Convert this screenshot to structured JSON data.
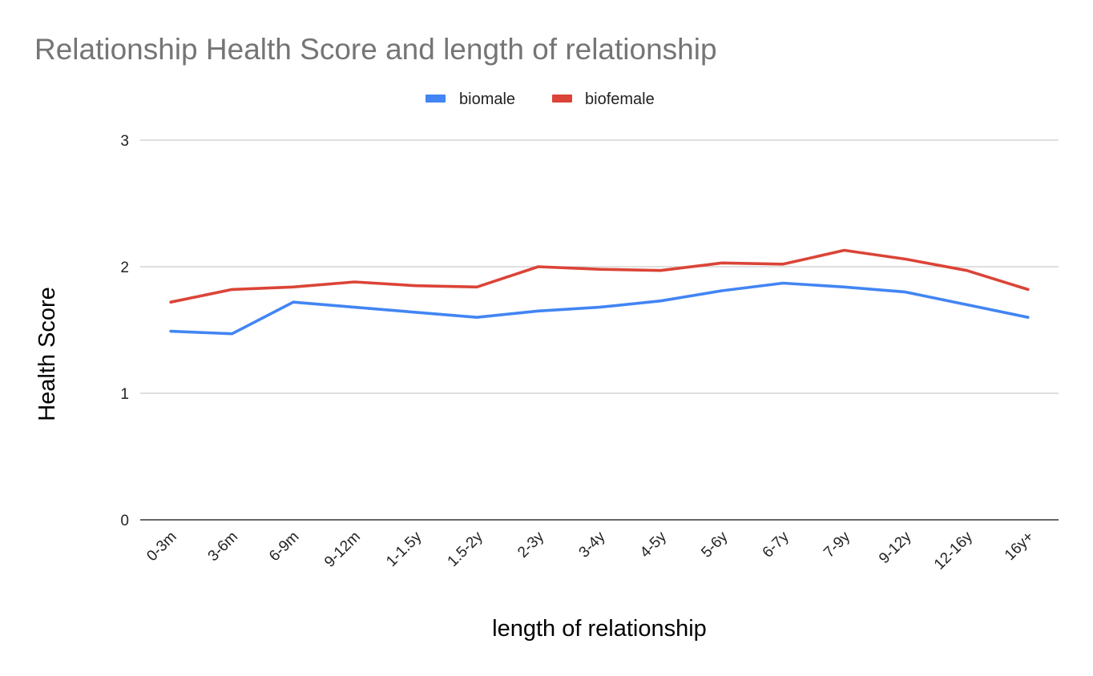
{
  "chart_data": {
    "type": "line",
    "title": "Relationship Health Score and length of relationship",
    "xlabel": "length of relationship",
    "ylabel": "Health Score",
    "ylim": [
      0,
      3
    ],
    "yticks": [
      "0",
      "1",
      "2",
      "3"
    ],
    "grid": true,
    "legend": "top-center",
    "categories": [
      "0-3m",
      "3-6m",
      "6-9m",
      "9-12m",
      "1-1.5y",
      "1.5-2y",
      "2-3y",
      "3-4y",
      "4-5y",
      "5-6y",
      "6-7y",
      "7-9y",
      "9-12y",
      "12-16y",
      "16y+"
    ],
    "series": [
      {
        "name": "biomale",
        "color": "#4285f4",
        "values": [
          1.49,
          1.47,
          1.72,
          1.68,
          1.64,
          1.6,
          1.65,
          1.68,
          1.73,
          1.81,
          1.87,
          1.84,
          1.8,
          1.7,
          1.6
        ]
      },
      {
        "name": "biofemale",
        "color": "#db4437",
        "values": [
          1.72,
          1.82,
          1.84,
          1.88,
          1.85,
          1.84,
          2.0,
          1.98,
          1.97,
          2.03,
          2.02,
          2.13,
          2.06,
          1.97,
          1.82
        ]
      }
    ]
  }
}
